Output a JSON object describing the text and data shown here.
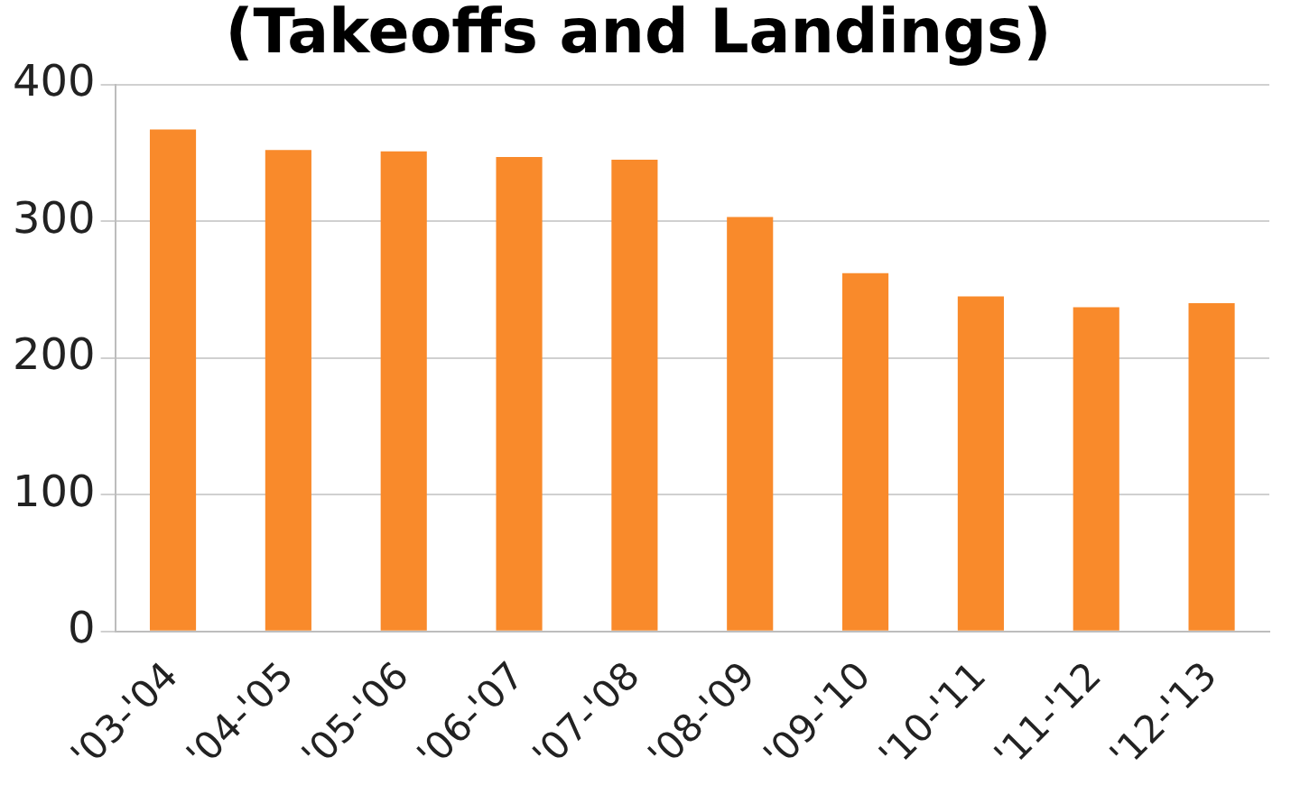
{
  "chart_data": {
    "type": "bar",
    "title": "(Takeoffs and Landings)",
    "categories": [
      "'03-'04",
      "'04-'05",
      "'05-'06",
      "'06-'07",
      "'07-'08",
      "'08-'09",
      "'09-'10",
      "'10-'11",
      "'11-'12",
      "'12-'13"
    ],
    "values": [
      367,
      352,
      351,
      347,
      345,
      303,
      262,
      245,
      237,
      240
    ],
    "color": "#f98a2b",
    "ylim": [
      0,
      400
    ],
    "yticks": [
      0,
      100,
      200,
      300,
      400
    ],
    "grid": "y",
    "legend": false
  }
}
